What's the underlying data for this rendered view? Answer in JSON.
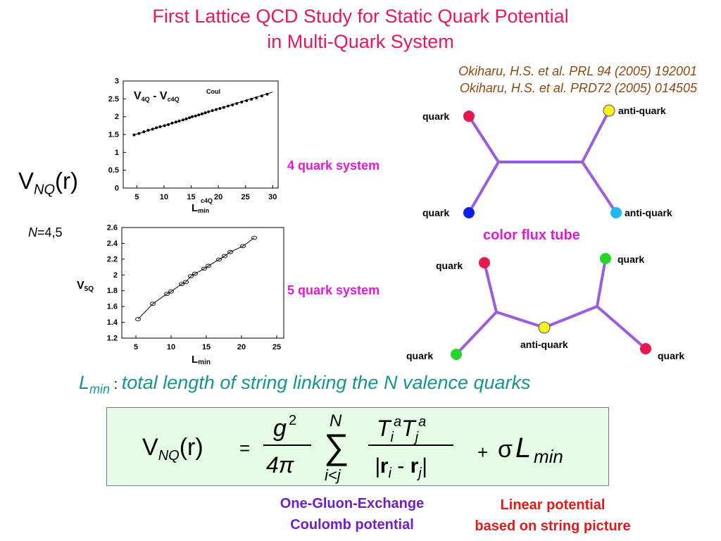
{
  "title": {
    "line1": "First Lattice QCD Study for Static Quark Potential",
    "line2": "in Multi-Quark System"
  },
  "references": [
    "Okiharu, H.S. et al. PRL 94 (2005) 192001",
    "Okiharu, H.S. et al. PRD72 (2005) 014505"
  ],
  "vnq_label": {
    "v": "V",
    "sub": "NQ",
    "r": "(r)"
  },
  "n_label": {
    "n": "N",
    "rest": "=4,5"
  },
  "four_quark_label": "4 quark system",
  "five_quark_label": "5 quark system",
  "color_flux_label": "color flux tube",
  "diagram4": {
    "tl": "quark",
    "tr": "anti-quark",
    "bl": "quark",
    "br": "anti-quark"
  },
  "diagram5": {
    "tl": "quark",
    "tr": "quark",
    "mid": "anti-quark",
    "bl": "quark",
    "br": "quark"
  },
  "colors": {
    "red": "#e8174f",
    "yellow": "#f5ef1e",
    "blue": "#0a23e6",
    "cyan": "#1fb9f0",
    "green": "#27d42a",
    "tube": "#9b5ce0"
  },
  "lmin_def": {
    "l": "L",
    "sub": "min",
    "colon": " : ",
    "text": "total length of string linking the N valence quarks"
  },
  "formula": {
    "lhs_v": "V",
    "lhs_sub": "NQ",
    "lhs_r": "(r)",
    "eq": "=",
    "num": "g",
    "num_sup": "2",
    "den": "4π",
    "sum_top": "N",
    "sum_sym": "∑",
    "sum_bot": "i<j",
    "t": "T",
    "t_sub_i": "i",
    "t_sub_j": "j",
    "t_sup": "a",
    "abs_r": "r",
    "minus": " - ",
    "plus": "+",
    "sigma": "σ",
    "l": "L",
    "l_sub": "min"
  },
  "oge_label": {
    "line1": "One-Gluon-Exchange",
    "line2": "Coulomb potential"
  },
  "linear_label": {
    "line1": "Linear potential",
    "line2": "based on string picture"
  },
  "chart_data": [
    {
      "type": "line",
      "title_main": "V",
      "title_sub1": "4Q",
      "title_dash": " - ",
      "title_main2": "V",
      "title_sup2": "Coul",
      "title_sub2": "c4Q",
      "xlabel_main": "L",
      "xlabel_sup": "c4Q",
      "xlabel_sub": "min",
      "xlim": [
        2.5,
        31
      ],
      "ylim": [
        0,
        3
      ],
      "xticks": [
        "5",
        "10",
        "15",
        "20",
        "25",
        "30"
      ],
      "xtick_vals": [
        5,
        10,
        15,
        20,
        25,
        30
      ],
      "yticks": [
        "0",
        "0.5",
        "1",
        "1.5",
        "2",
        "2.5",
        "3"
      ],
      "ytick_vals": [
        0,
        0.5,
        1,
        1.5,
        2,
        2.5,
        3
      ],
      "fit_line": [
        [
          4.5,
          1.49
        ],
        [
          30,
          2.69
        ]
      ],
      "x": [
        4.5,
        5.4,
        6.3,
        7.1,
        7.9,
        8.6,
        9.3,
        10.1,
        10.8,
        11.5,
        12.2,
        12.8,
        13.5,
        14.1,
        14.7,
        15.2,
        15.8,
        16.4,
        17.0,
        17.6,
        18.2,
        18.9,
        19.6,
        20.3,
        21.0,
        21.8,
        22.6,
        23.4,
        24.3,
        25.2,
        26.1,
        27.0,
        28.0,
        29.0
      ],
      "y": [
        1.49,
        1.53,
        1.58,
        1.62,
        1.65,
        1.69,
        1.72,
        1.75,
        1.78,
        1.82,
        1.85,
        1.88,
        1.91,
        1.94,
        1.97,
        2.0,
        2.02,
        2.05,
        2.08,
        2.11,
        2.14,
        2.17,
        2.2,
        2.23,
        2.26,
        2.3,
        2.33,
        2.37,
        2.41,
        2.45,
        2.49,
        2.53,
        2.58,
        2.63
      ]
    },
    {
      "type": "line",
      "ylabel_main": "V",
      "ylabel_sub": "5Q",
      "xlabel_main": "L",
      "xlabel_sub": "min",
      "xlim": [
        3,
        26
      ],
      "ylim": [
        1.2,
        2.6
      ],
      "xticks": [
        "5",
        "10",
        "15",
        "20",
        "25"
      ],
      "xtick_vals": [
        5,
        10,
        15,
        20,
        25
      ],
      "yticks": [
        "1.2",
        "1.4",
        "1.6",
        "1.8",
        "2",
        "2.2",
        "2.4",
        "2.6"
      ],
      "ytick_vals": [
        1.2,
        1.4,
        1.6,
        1.8,
        2,
        2.2,
        2.4,
        2.6
      ],
      "x": [
        5.3,
        7.4,
        9.4,
        10.0,
        11.5,
        12.1,
        12.8,
        13.4,
        14.7,
        15.3,
        16.8,
        17.6,
        18.4,
        20.2,
        21.8
      ],
      "y": [
        1.44,
        1.635,
        1.76,
        1.79,
        1.885,
        1.91,
        1.985,
        2.015,
        2.08,
        2.115,
        2.195,
        2.24,
        2.29,
        2.365,
        2.47
      ]
    }
  ]
}
